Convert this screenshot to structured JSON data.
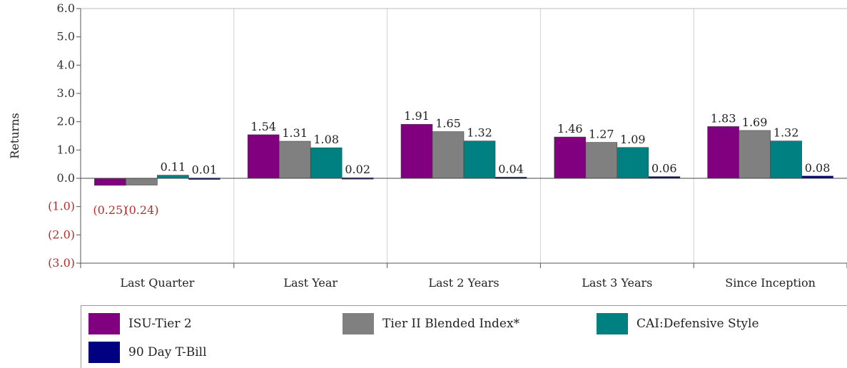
{
  "chart_data": {
    "type": "bar",
    "ylabel": "Returns",
    "ylim": [
      -3.0,
      6.0
    ],
    "yticks": [
      {
        "value": 6.0,
        "label": "6.0"
      },
      {
        "value": 5.0,
        "label": "5.0"
      },
      {
        "value": 4.0,
        "label": "4.0"
      },
      {
        "value": 3.0,
        "label": "3.0"
      },
      {
        "value": 2.0,
        "label": "2.0"
      },
      {
        "value": 1.0,
        "label": "1.0"
      },
      {
        "value": 0.0,
        "label": "0.0"
      },
      {
        "value": -1.0,
        "label": "(1.0)"
      },
      {
        "value": -2.0,
        "label": "(2.0)"
      },
      {
        "value": -3.0,
        "label": "(3.0)"
      }
    ],
    "grid": "vertical",
    "legend_position": "bottom",
    "categories": [
      "Last Quarter",
      "Last Year",
      "Last 2 Years",
      "Last 3 Years",
      "Since Inception"
    ],
    "series": [
      {
        "name": "ISU-Tier 2",
        "color": "#800080",
        "values": [
          -0.25,
          1.54,
          1.91,
          1.46,
          1.83
        ],
        "labels": [
          "(0.25)",
          "1.54",
          "1.91",
          "1.46",
          "1.83"
        ]
      },
      {
        "name": "Tier II Blended Index*",
        "color": "#808080",
        "values": [
          -0.24,
          1.31,
          1.65,
          1.27,
          1.69
        ],
        "labels": [
          "(0.24)",
          "1.31",
          "1.65",
          "1.27",
          "1.69"
        ]
      },
      {
        "name": "CAI:Defensive Style",
        "color": "#008080",
        "values": [
          0.11,
          1.08,
          1.32,
          1.09,
          1.32
        ],
        "labels": [
          "0.11",
          "1.08",
          "1.32",
          "1.09",
          "1.32"
        ]
      },
      {
        "name": "90 Day T-Bill",
        "color": "#000080",
        "values": [
          0.01,
          0.02,
          0.04,
          0.06,
          0.08
        ],
        "labels": [
          "0.01",
          "0.02",
          "0.04",
          "0.06",
          "0.08"
        ]
      }
    ]
  }
}
